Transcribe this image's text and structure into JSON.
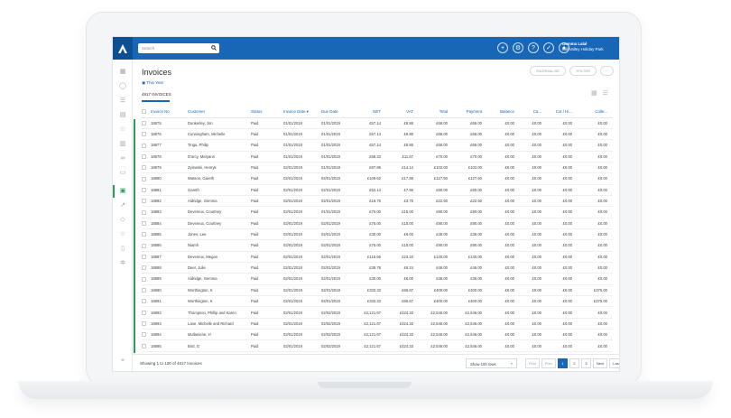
{
  "search": {
    "placeholder": "Search"
  },
  "user": {
    "name": "Gemma Lalal",
    "site": "Mill Valley Holiday Park"
  },
  "page": {
    "title": "Invoices",
    "filter_label": "This Year",
    "tab_label": "4917 INVOICES"
  },
  "header_buttons": {
    "normalise": "NORMALISE",
    "filter": "FILTER",
    "more": "···"
  },
  "table": {
    "columns": [
      "Invoice No",
      "Customer",
      "Status",
      "Invoice Date",
      "Due Date",
      "NET",
      "VAT",
      "Total",
      "Payment",
      "Balance",
      "Ca...",
      "Cot / Hi...",
      "Colle..."
    ],
    "rows": [
      [
        "18875",
        "Dunkerley, Jon",
        "Paid",
        "01/01/2019",
        "01/01/2019",
        "£57.14",
        "£8.86",
        "£66.00",
        "£66.00",
        "£0.00",
        "£0.00",
        "£0.00",
        "£0.00"
      ],
      [
        "18876",
        "Cunningham, Michelle",
        "Paid",
        "01/01/2019",
        "01/01/2019",
        "£57.14",
        "£8.86",
        "£66.00",
        "£66.00",
        "£0.00",
        "£0.00",
        "£0.00",
        "£0.00"
      ],
      [
        "18877",
        "Tingu, Philip",
        "Paid",
        "01/01/2019",
        "01/01/2019",
        "£57.14",
        "£8.86",
        "£66.00",
        "£66.00",
        "£0.00",
        "£0.00",
        "£0.00",
        "£0.00"
      ],
      [
        "18878",
        "D'arcy, Maryann",
        "Paid",
        "01/01/2019",
        "01/01/2019",
        "£58.33",
        "£11.67",
        "£70.00",
        "£70.00",
        "£0.00",
        "£0.00",
        "£0.00",
        "£0.00"
      ],
      [
        "18879",
        "Zylewski, Henryk",
        "Paid",
        "02/01/2019",
        "01/01/2019",
        "£87.86",
        "£14.14",
        "£102.00",
        "£102.00",
        "£0.00",
        "£0.00",
        "£0.00",
        "£0.00"
      ],
      [
        "18880",
        "Watson, Gareth",
        "Paid",
        "02/01/2019",
        "02/01/2019",
        "£109.62",
        "£17.88",
        "£127.50",
        "£127.50",
        "£0.00",
        "£0.00",
        "£0.00",
        "£0.00"
      ],
      [
        "18881",
        "Gareth",
        "Paid",
        "02/01/2019",
        "02/01/2019",
        "£52.14",
        "£7.86",
        "£60.00",
        "£60.00",
        "£0.00",
        "£0.00",
        "£0.00",
        "£0.00"
      ],
      [
        "18882",
        "Aldridge, Gemma",
        "Paid",
        "02/01/2019",
        "02/01/2019",
        "£18.75",
        "£3.75",
        "£22.50",
        "£22.50",
        "£0.00",
        "£0.00",
        "£0.00",
        "£0.00"
      ],
      [
        "18883",
        "Devereux, Courtney",
        "Paid",
        "02/01/2019",
        "01/01/2019",
        "£75.00",
        "£15.00",
        "£90.00",
        "£90.00",
        "£0.00",
        "£0.00",
        "£0.00",
        "£0.00"
      ],
      [
        "18884",
        "Devereux, Courtney",
        "Paid",
        "02/01/2019",
        "02/01/2019",
        "£75.00",
        "£15.00",
        "£90.00",
        "£90.00",
        "£0.00",
        "£0.00",
        "£0.00",
        "£0.00"
      ],
      [
        "18885",
        "Jones, Lee",
        "Paid",
        "02/01/2019",
        "02/01/2019",
        "£30.00",
        "£6.00",
        "£36.00",
        "£36.00",
        "£0.00",
        "£0.00",
        "£0.00",
        "£0.00"
      ],
      [
        "18886",
        "Niamh",
        "Paid",
        "02/01/2019",
        "02/01/2019",
        "£75.00",
        "£15.00",
        "£90.00",
        "£90.00",
        "£0.00",
        "£0.00",
        "£0.00",
        "£0.00"
      ],
      [
        "18887",
        "Devereux, Megan",
        "Paid",
        "02/01/2019",
        "02/01/2019",
        "£116.66",
        "£23.34",
        "£140.00",
        "£140.00",
        "£0.00",
        "£0.00",
        "£0.00",
        "£0.00"
      ],
      [
        "18888",
        "Deer, Julie",
        "Paid",
        "02/01/2019",
        "02/01/2019",
        "£38.76",
        "£6.24",
        "£46.00",
        "£46.00",
        "£0.00",
        "£0.00",
        "£0.00",
        "£0.00"
      ],
      [
        "18889",
        "Aldridge, Gemma",
        "Paid",
        "02/01/2019",
        "02/01/2019",
        "£30.00",
        "£6.00",
        "£36.00",
        "£36.00",
        "£0.00",
        "£0.00",
        "£0.00",
        "£0.00"
      ],
      [
        "18890",
        "Worthington, K",
        "Paid",
        "02/01/2019",
        "02/01/2019",
        "£333.33",
        "£66.67",
        "£400.00",
        "£400.00",
        "£0.00",
        "£0.00",
        "£0.00",
        "£375.00"
      ],
      [
        "18891",
        "Worthington, K",
        "Paid",
        "02/01/2019",
        "02/01/2019",
        "£333.33",
        "£66.67",
        "£400.00",
        "£400.00",
        "£0.00",
        "£0.00",
        "£0.00",
        "£375.00"
      ],
      [
        "18892",
        "Thompson, Phillip and Karen",
        "Paid",
        "02/01/2019",
        "02/02/2019",
        "£2,121.67",
        "£424.33",
        "£2,546.00",
        "£2,546.00",
        "£0.00",
        "£0.00",
        "£0.00",
        "£0.00"
      ],
      [
        "18893",
        "Lane, Michelle and Richard",
        "Paid",
        "02/01/2019",
        "02/02/2019",
        "£2,121.67",
        "£424.33",
        "£2,546.00",
        "£2,546.00",
        "£0.00",
        "£0.00",
        "£0.00",
        "£0.00"
      ],
      [
        "18894",
        "Mullaniene, H",
        "Paid",
        "02/01/2019",
        "02/02/2019",
        "£2,121.67",
        "£424.33",
        "£2,546.00",
        "£2,546.00",
        "£0.00",
        "£0.00",
        "£0.00",
        "£0.00"
      ],
      [
        "18895",
        "Bird, G",
        "Paid",
        "02/01/2019",
        "02/02/2019",
        "£2,121.67",
        "£424.33",
        "£2,546.00",
        "£2,546.00",
        "£0.00",
        "£0.00",
        "£0.00",
        "£0.00"
      ]
    ]
  },
  "footer": {
    "showing": "Showing 1 to 100 of 4917 Invoices",
    "rows_select": "Show 100 rows",
    "pager": [
      "First",
      "Prev",
      "1",
      "2",
      "3",
      "Next",
      "Last"
    ],
    "current_page": "1"
  },
  "colors": {
    "brand": "#1767b6",
    "accent_green": "#2d9b59"
  }
}
